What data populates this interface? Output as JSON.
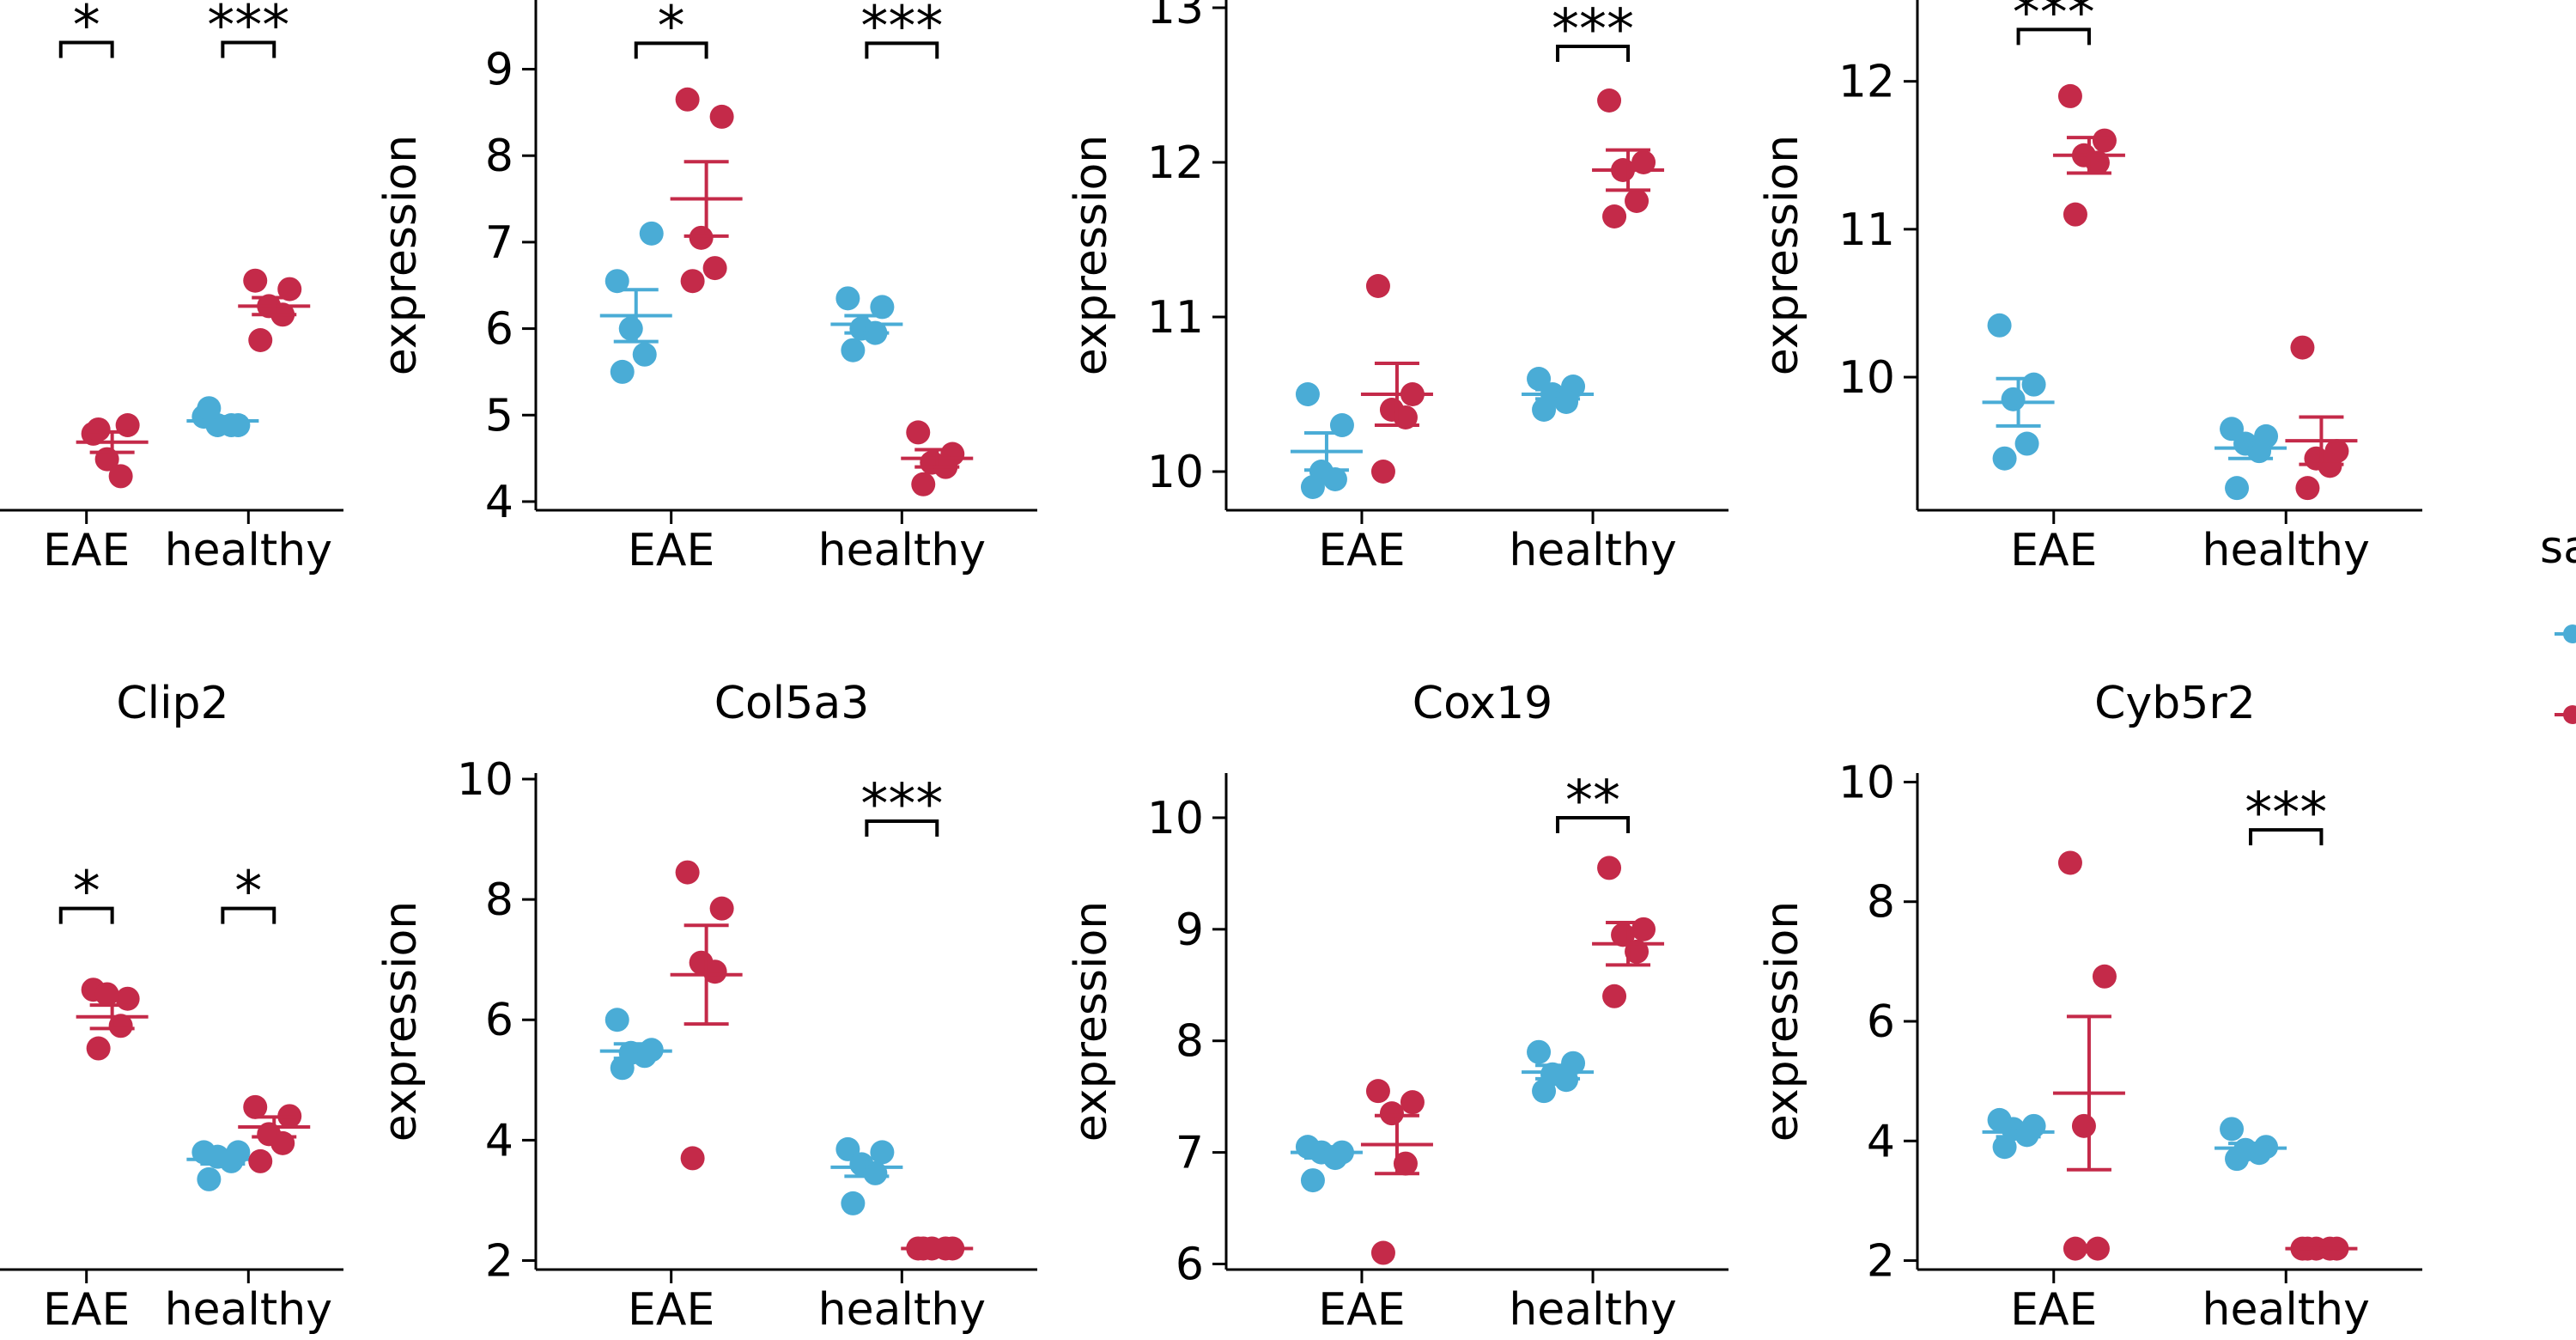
{
  "colors": {
    "control": "#4aacd6",
    "treated": "#c42a49",
    "axis": "#000000"
  },
  "legend": {
    "title_fragment": "sa"
  },
  "chart_data": [
    {
      "type": "scatter",
      "title": "",
      "ylabel": "",
      "categories": [
        "EAE",
        "healthy"
      ],
      "ylim": [
        4.9,
        10.9
      ],
      "yticks": [],
      "series": [
        {
          "group": "EAE",
          "color": "control",
          "points": [],
          "mean": null,
          "se": null
        },
        {
          "group": "EAE",
          "color": "treated",
          "points": [
            5.8,
            5.9,
            5.5,
            5.3,
            5.85
          ],
          "mean": 5.7,
          "se": 0.12
        },
        {
          "group": "healthy",
          "color": "control",
          "points": [
            6.0,
            5.9,
            5.9,
            5.9,
            6.1
          ],
          "mean": 5.95,
          "se": 0.05
        },
        {
          "group": "healthy",
          "color": "treated",
          "points": [
            7.6,
            7.5,
            7.3,
            7.2,
            6.9
          ],
          "mean": 7.3,
          "se": 0.1
        }
      ],
      "significance": [
        {
          "group": "EAE",
          "label": "*",
          "level": 10.4
        },
        {
          "group": "healthy",
          "label": "***",
          "level": 10.4
        }
      ]
    },
    {
      "type": "scatter",
      "title": "",
      "ylabel": "expression",
      "categories": [
        "EAE",
        "healthy"
      ],
      "ylim": [
        3.9,
        9.8
      ],
      "yticks": [
        4,
        5,
        6,
        7,
        8,
        9
      ],
      "series": [
        {
          "group": "EAE",
          "color": "control",
          "points": [
            6.55,
            7.1,
            6.0,
            5.7,
            5.5
          ],
          "mean": 6.15,
          "se": 0.3
        },
        {
          "group": "EAE",
          "color": "treated",
          "points": [
            8.65,
            8.45,
            7.05,
            6.7,
            6.55
          ],
          "mean": 7.5,
          "se": 0.43
        },
        {
          "group": "healthy",
          "color": "control",
          "points": [
            6.35,
            6.25,
            6.0,
            5.95,
            5.75
          ],
          "mean": 6.05,
          "se": 0.1
        },
        {
          "group": "healthy",
          "color": "treated",
          "points": [
            4.8,
            4.55,
            4.45,
            4.4,
            4.2
          ],
          "mean": 4.5,
          "se": 0.1
        }
      ],
      "significance": [
        {
          "group": "EAE",
          "label": "*",
          "level": 9.3
        },
        {
          "group": "healthy",
          "label": "***",
          "level": 9.3
        }
      ]
    },
    {
      "type": "scatter",
      "title": "",
      "ylabel": "expression",
      "categories": [
        "EAE",
        "healthy"
      ],
      "ylim": [
        9.75,
        13.05
      ],
      "yticks": [
        10,
        11,
        12,
        13
      ],
      "series": [
        {
          "group": "EAE",
          "color": "control",
          "points": [
            10.5,
            10.3,
            10.0,
            9.95,
            9.9
          ],
          "mean": 10.13,
          "se": 0.12
        },
        {
          "group": "EAE",
          "color": "treated",
          "points": [
            11.2,
            10.5,
            10.4,
            10.35,
            10.0
          ],
          "mean": 10.5,
          "se": 0.2
        },
        {
          "group": "healthy",
          "color": "control",
          "points": [
            10.6,
            10.55,
            10.5,
            10.45,
            10.4
          ],
          "mean": 10.5,
          "se": 0.03
        },
        {
          "group": "healthy",
          "color": "treated",
          "points": [
            12.4,
            12.0,
            11.95,
            11.75,
            11.65
          ],
          "mean": 11.95,
          "se": 0.13
        }
      ],
      "significance": [
        {
          "group": "healthy",
          "label": "***",
          "level": 12.75
        }
      ]
    },
    {
      "type": "scatter",
      "title": "",
      "ylabel": "expression",
      "categories": [
        "EAE",
        "healthy"
      ],
      "ylim": [
        9.1,
        12.55
      ],
      "yticks": [
        10,
        11,
        12
      ],
      "series": [
        {
          "group": "EAE",
          "color": "control",
          "points": [
            10.35,
            9.95,
            9.85,
            9.55,
            9.45
          ],
          "mean": 9.83,
          "se": 0.16
        },
        {
          "group": "EAE",
          "color": "treated",
          "points": [
            11.9,
            11.6,
            11.5,
            11.45,
            11.1
          ],
          "mean": 11.5,
          "se": 0.12
        },
        {
          "group": "healthy",
          "color": "control",
          "points": [
            9.65,
            9.6,
            9.55,
            9.5,
            9.25
          ],
          "mean": 9.52,
          "se": 0.07
        },
        {
          "group": "healthy",
          "color": "treated",
          "points": [
            10.2,
            9.5,
            9.45,
            9.4,
            9.25
          ],
          "mean": 9.57,
          "se": 0.16
        }
      ],
      "significance": [
        {
          "group": "EAE",
          "label": "***",
          "level": 12.35
        }
      ]
    },
    {
      "type": "scatter",
      "title": "Clip2",
      "ylabel": "",
      "categories": [
        "EAE",
        "healthy"
      ],
      "ylim": [
        4.2,
        9.7
      ],
      "yticks": [],
      "series": [
        {
          "group": "EAE",
          "color": "control",
          "points": [],
          "mean": null,
          "se": null
        },
        {
          "group": "EAE",
          "color": "treated",
          "points": [
            7.3,
            7.2,
            7.25,
            6.9,
            6.65
          ],
          "mean": 7.0,
          "se": 0.13
        },
        {
          "group": "healthy",
          "color": "control",
          "points": [
            5.5,
            5.5,
            5.45,
            5.4,
            5.2
          ],
          "mean": 5.42,
          "se": 0.05
        },
        {
          "group": "healthy",
          "color": "treated",
          "points": [
            6.0,
            5.9,
            5.7,
            5.6,
            5.4
          ],
          "mean": 5.78,
          "se": 0.11
        }
      ],
      "significance": [
        {
          "group": "EAE",
          "label": "*",
          "level": 8.2
        },
        {
          "group": "healthy",
          "label": "*",
          "level": 8.2
        }
      ]
    },
    {
      "type": "scatter",
      "title": "Col5a3",
      "ylabel": "expression",
      "categories": [
        "EAE",
        "healthy"
      ],
      "ylim": [
        1.85,
        10.1
      ],
      "yticks": [
        2,
        4,
        6,
        8,
        10
      ],
      "series": [
        {
          "group": "EAE",
          "color": "control",
          "points": [
            6.0,
            5.5,
            5.45,
            5.4,
            5.2
          ],
          "mean": 5.48,
          "se": 0.12
        },
        {
          "group": "EAE",
          "color": "treated",
          "points": [
            8.45,
            7.85,
            6.95,
            6.8,
            3.7
          ],
          "mean": 6.75,
          "se": 0.82
        },
        {
          "group": "healthy",
          "color": "control",
          "points": [
            3.85,
            3.8,
            3.6,
            3.45,
            2.95
          ],
          "mean": 3.55,
          "se": 0.15
        },
        {
          "group": "healthy",
          "color": "treated",
          "points": [
            2.2,
            2.2,
            2.2,
            2.2,
            2.2
          ],
          "mean": 2.2,
          "se": 0.0
        }
      ],
      "significance": [
        {
          "group": "healthy",
          "label": "***",
          "level": 9.3
        }
      ]
    },
    {
      "type": "scatter",
      "title": "Cox19",
      "ylabel": "expression",
      "categories": [
        "EAE",
        "healthy"
      ],
      "ylim": [
        5.95,
        10.4
      ],
      "yticks": [
        6,
        7,
        8,
        9,
        10
      ],
      "series": [
        {
          "group": "EAE",
          "color": "control",
          "points": [
            7.05,
            7.0,
            7.0,
            6.95,
            6.75
          ],
          "mean": 7.0,
          "se": 0.05
        },
        {
          "group": "EAE",
          "color": "treated",
          "points": [
            7.55,
            7.45,
            7.35,
            6.9,
            6.1
          ],
          "mean": 7.07,
          "se": 0.26
        },
        {
          "group": "healthy",
          "color": "control",
          "points": [
            7.9,
            7.8,
            7.7,
            7.65,
            7.55
          ],
          "mean": 7.72,
          "se": 0.06
        },
        {
          "group": "healthy",
          "color": "treated",
          "points": [
            9.55,
            9.0,
            8.95,
            8.8,
            8.4
          ],
          "mean": 8.87,
          "se": 0.19
        }
      ],
      "significance": [
        {
          "group": "healthy",
          "label": "**",
          "level": 10.0
        }
      ]
    },
    {
      "type": "scatter",
      "title": "Cyb5r2",
      "ylabel": "expression",
      "categories": [
        "EAE",
        "healthy"
      ],
      "ylim": [
        1.85,
        10.15
      ],
      "yticks": [
        2,
        4,
        6,
        8,
        10
      ],
      "series": [
        {
          "group": "EAE",
          "color": "control",
          "points": [
            4.35,
            4.25,
            4.2,
            4.1,
            3.9
          ],
          "mean": 4.15,
          "se": 0.08
        },
        {
          "group": "EAE",
          "color": "treated",
          "points": [
            8.65,
            6.75,
            4.25,
            2.2,
            2.2
          ],
          "mean": 4.8,
          "se": 1.28
        },
        {
          "group": "healthy",
          "color": "control",
          "points": [
            4.2,
            3.9,
            3.85,
            3.8,
            3.7
          ],
          "mean": 3.88,
          "se": 0.08
        },
        {
          "group": "healthy",
          "color": "treated",
          "points": [
            2.2,
            2.2,
            2.2,
            2.2,
            2.2
          ],
          "mean": 2.2,
          "se": 0.0
        }
      ],
      "significance": [
        {
          "group": "healthy",
          "label": "***",
          "level": 9.2
        }
      ]
    }
  ]
}
